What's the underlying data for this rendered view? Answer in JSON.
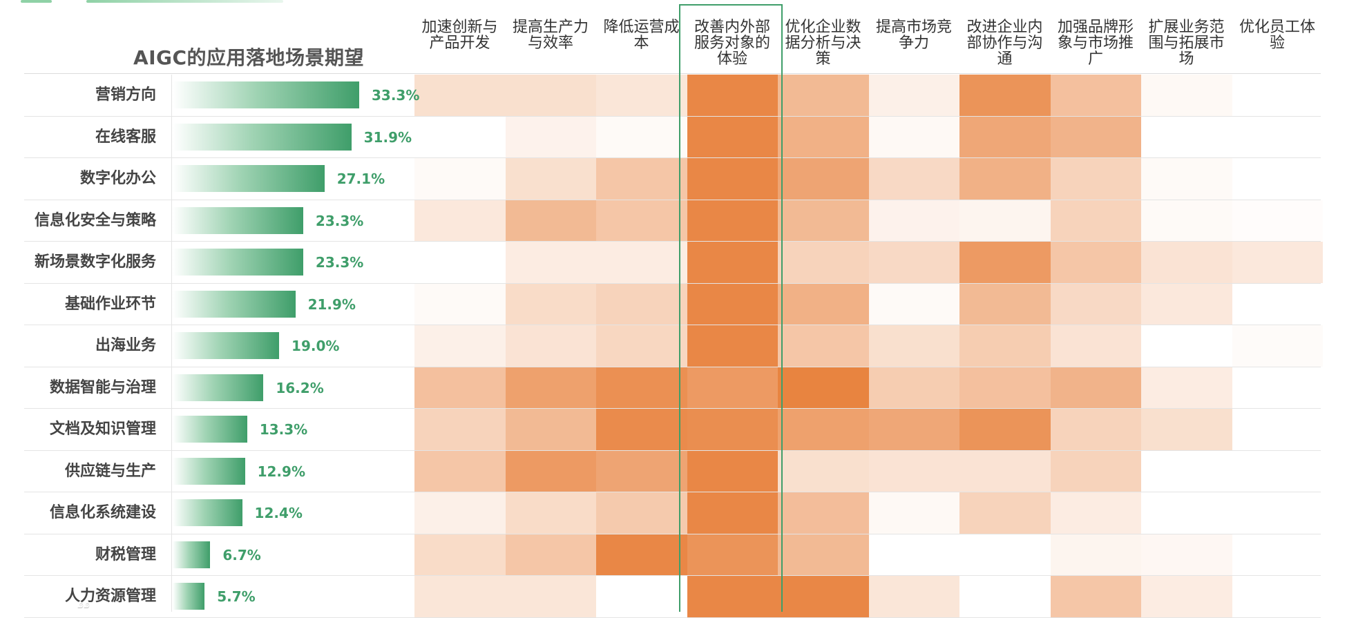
{
  "chart_data": {
    "type": "heatmap",
    "title": "AIGC的应用落地场景期望",
    "columns": [
      "加速创新与\n产品开发",
      "提高生产力\n与效率",
      "降低运营成\n本",
      "改善内外部\n服务对象的\n体验",
      "优化企业数\n据分析与决\n策",
      "提高市场竞\n争力",
      "改进企业内\n部协作与沟\n通",
      "加强品牌形\n象与市场推\n广",
      "扩展业务范\n围与拓展市\n场",
      "优化员工体\n验"
    ],
    "highlighted_column_index": 3,
    "rows": [
      {
        "label": "营销方向",
        "value": 33.3,
        "value_label": "33.3%"
      },
      {
        "label": "在线客服",
        "value": 31.9,
        "value_label": "31.9%"
      },
      {
        "label": "数字化办公",
        "value": 27.1,
        "value_label": "27.1%"
      },
      {
        "label": "信息化安全与策略",
        "value": 23.3,
        "value_label": "23.3%"
      },
      {
        "label": "新场景数字化服务",
        "value": 23.3,
        "value_label": "23.3%"
      },
      {
        "label": "基础作业环节",
        "value": 21.9,
        "value_label": "21.9%"
      },
      {
        "label": "出海业务",
        "value": 19.0,
        "value_label": "19.0%"
      },
      {
        "label": "数据智能与治理",
        "value": 16.2,
        "value_label": "16.2%"
      },
      {
        "label": "文档及知识管理",
        "value": 13.3,
        "value_label": "13.3%"
      },
      {
        "label": "供应链与生产",
        "value": 12.9,
        "value_label": "12.9%"
      },
      {
        "label": "信息化系统建设",
        "value": 12.4,
        "value_label": "12.4%"
      },
      {
        "label": "财税管理",
        "value": 6.7,
        "value_label": "6.7%"
      },
      {
        "label": "人力资源管理",
        "value": 5.7,
        "value_label": "5.7%"
      }
    ],
    "heat_values": [
      [
        0.25,
        0.25,
        0.2,
        0.95,
        0.55,
        0.12,
        0.85,
        0.5,
        0.05,
        0.0
      ],
      [
        0.0,
        0.1,
        0.04,
        0.95,
        0.62,
        0.05,
        0.7,
        0.6,
        0.0,
        0.0
      ],
      [
        0.04,
        0.25,
        0.45,
        0.95,
        0.72,
        0.3,
        0.62,
        0.35,
        0.04,
        0.0
      ],
      [
        0.18,
        0.55,
        0.45,
        0.95,
        0.55,
        0.1,
        0.08,
        0.35,
        0.04,
        0.02
      ],
      [
        0.0,
        0.15,
        0.15,
        0.95,
        0.35,
        0.3,
        0.8,
        0.45,
        0.22,
        0.18
      ],
      [
        0.04,
        0.28,
        0.35,
        0.95,
        0.62,
        0.04,
        0.55,
        0.3,
        0.18,
        0.0
      ],
      [
        0.12,
        0.22,
        0.32,
        0.95,
        0.45,
        0.25,
        0.4,
        0.22,
        0.0,
        0.03
      ],
      [
        0.5,
        0.75,
        0.88,
        0.8,
        0.98,
        0.4,
        0.5,
        0.6,
        0.15,
        0.0
      ],
      [
        0.35,
        0.55,
        0.92,
        0.9,
        0.75,
        0.7,
        0.85,
        0.35,
        0.25,
        0.0
      ],
      [
        0.45,
        0.8,
        0.72,
        0.95,
        0.25,
        0.22,
        0.22,
        0.35,
        0.0,
        0.0
      ],
      [
        0.12,
        0.28,
        0.42,
        0.95,
        0.52,
        0.05,
        0.35,
        0.15,
        0.0,
        0.0
      ],
      [
        0.28,
        0.45,
        0.95,
        0.85,
        0.55,
        0.0,
        0.0,
        0.08,
        0.06,
        0.0
      ],
      [
        0.2,
        0.2,
        0.0,
        0.95,
        0.95,
        0.2,
        0.0,
        0.45,
        0.15,
        0.0
      ]
    ],
    "colors": {
      "heat_base": "#ffffff",
      "heat_max": "#e8813c",
      "bar_start": "#ffffff",
      "bar_end": "#3f9e6a",
      "value_text": "#3f9e6a",
      "highlight_border": "#3f9e6a"
    }
  }
}
